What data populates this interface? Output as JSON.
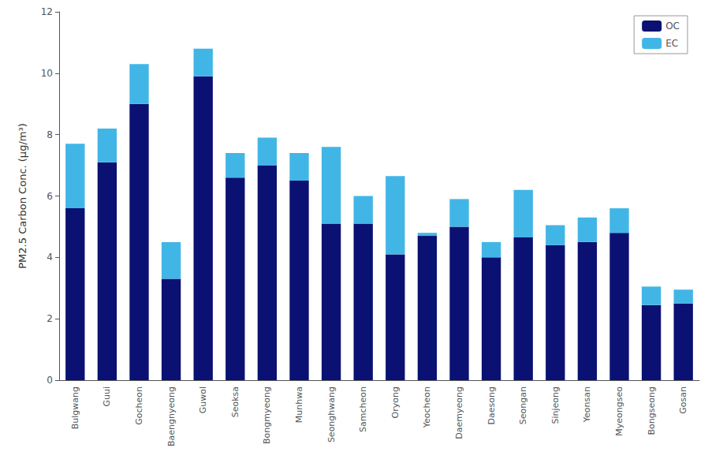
{
  "chart_data": {
    "type": "bar",
    "stacked": true,
    "ylabel": "PM2.5 Carbon Conc. (μg/m³)",
    "categories": [
      "Bulgwang",
      "Guui",
      "Gocheon",
      "Baengnyeong",
      "Guwol",
      "Seoksa",
      "Bongmyeong",
      "Munhwa",
      "Seonghwang",
      "Samcheon",
      "Oryong",
      "Yeocheon",
      "Daemyeong",
      "Daesong",
      "Seongan",
      "Sinjeong",
      "Yeonsan",
      "Myeongseo",
      "Bongseong",
      "Gosan"
    ],
    "series": [
      {
        "name": "OC",
        "color": "#0a1172",
        "values": [
          5.6,
          7.1,
          9.0,
          3.3,
          9.9,
          6.6,
          7.0,
          6.5,
          5.1,
          5.1,
          4.1,
          4.7,
          5.0,
          4.0,
          4.65,
          4.4,
          4.5,
          4.8,
          2.45,
          2.5
        ]
      },
      {
        "name": "EC",
        "color": "#41b6e6",
        "values": [
          2.1,
          1.1,
          1.3,
          1.2,
          0.9,
          0.8,
          0.9,
          0.9,
          2.5,
          0.9,
          2.55,
          0.1,
          0.9,
          0.5,
          1.55,
          0.65,
          0.8,
          0.8,
          0.6,
          0.45
        ]
      }
    ],
    "ylim": [
      0,
      12
    ],
    "yticks": [
      0,
      2,
      4,
      6,
      8,
      10,
      12
    ],
    "grid": false,
    "legend": "upper right"
  }
}
